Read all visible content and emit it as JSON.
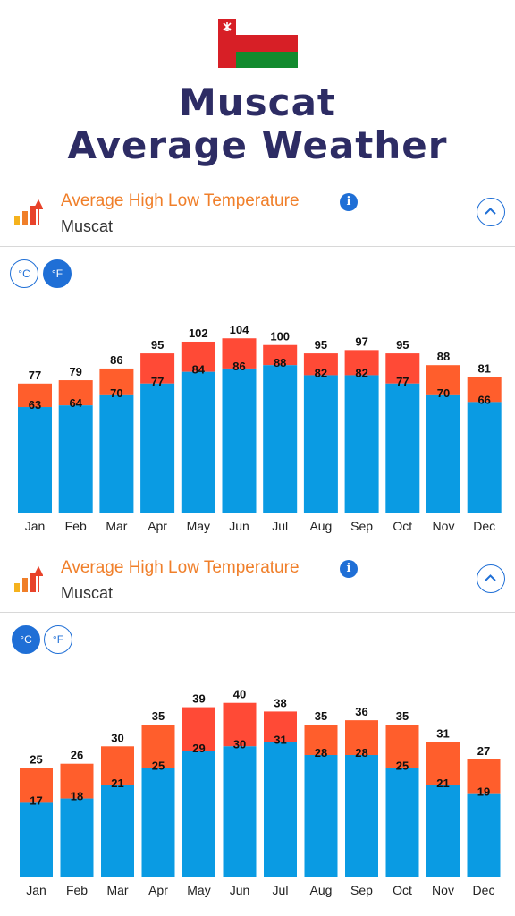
{
  "header": {
    "title_line1": "Muscat",
    "title_line2": "Average Weather",
    "flag_colors": {
      "red": "#d71f26",
      "white": "#ffffff",
      "green": "#128a2e"
    }
  },
  "panels": [
    {
      "title": "Average High Low Temperature",
      "subtitle": "Muscat",
      "unit_c_label": "°C",
      "unit_f_label": "°F",
      "active_unit": "F"
    },
    {
      "title": "Average High Low Temperature",
      "subtitle": "Muscat",
      "unit_c_label": "°C",
      "unit_f_label": "°F",
      "active_unit": "C"
    }
  ],
  "colors": {
    "low_bar": "#0a9be3",
    "high_bar_warm": "#ff5e2c",
    "high_bar_hot": "#ff4a36",
    "accent": "#1f6fd6",
    "title_orange": "#f07f2a"
  },
  "chart_data": [
    {
      "type": "bar",
      "categories": [
        "Jan",
        "Feb",
        "Mar",
        "Apr",
        "May",
        "Jun",
        "Jul",
        "Aug",
        "Sep",
        "Oct",
        "Nov",
        "Dec"
      ],
      "series": [
        {
          "values": [
            77,
            79,
            86,
            95,
            102,
            104,
            100,
            95,
            97,
            95,
            88,
            81
          ]
        },
        {
          "values": [
            63,
            64,
            70,
            77,
            84,
            86,
            88,
            82,
            82,
            77,
            70,
            66
          ]
        }
      ],
      "ylim": [
        0,
        110
      ]
    },
    {
      "type": "bar",
      "categories": [
        "Jan",
        "Feb",
        "Mar",
        "Apr",
        "May",
        "Jun",
        "Jul",
        "Aug",
        "Sep",
        "Oct",
        "Nov",
        "Dec"
      ],
      "series": [
        {
          "values": [
            25,
            26,
            30,
            35,
            39,
            40,
            38,
            35,
            36,
            35,
            31,
            27
          ]
        },
        {
          "values": [
            17,
            18,
            21,
            25,
            29,
            30,
            31,
            28,
            28,
            25,
            21,
            19
          ]
        }
      ],
      "ylim": [
        0,
        42
      ]
    }
  ]
}
